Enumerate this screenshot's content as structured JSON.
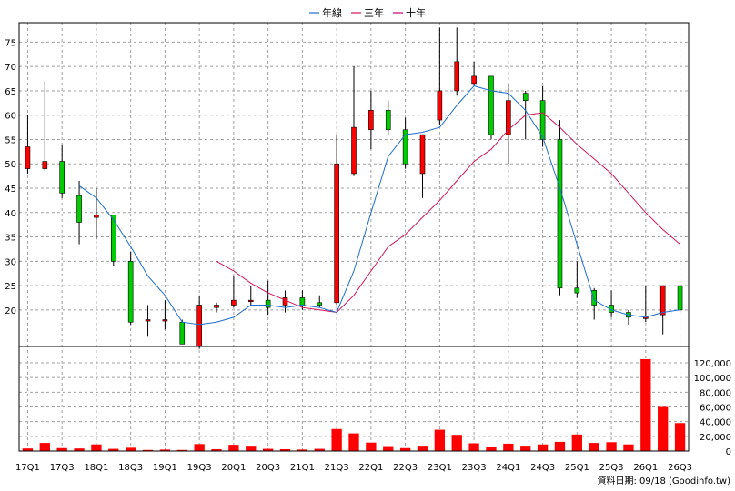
{
  "chart_data": {
    "type": "candlestick",
    "legend": [
      {
        "label": "年線",
        "color": "#1e6fd0"
      },
      {
        "label": "三年",
        "color": "#d4145a"
      },
      {
        "label": "十年",
        "color": "#c8007a"
      }
    ],
    "colors": {
      "up": "#ff0000",
      "down": "#00cc00",
      "volume": "#ff0000",
      "ma1": "#1e6fd0",
      "ma3": "#d4145a"
    },
    "x_labels": [
      "17Q1",
      "17Q3",
      "18Q1",
      "18Q3",
      "19Q1",
      "19Q3",
      "20Q1",
      "20Q3",
      "21Q1",
      "21Q3",
      "22Q1",
      "22Q3",
      "23Q1",
      "23Q3",
      "24Q1",
      "24Q3",
      "25Q1",
      "25Q3",
      "26Q1",
      "26Q3"
    ],
    "price_axis": {
      "ticks": [
        20,
        25,
        30,
        35,
        40,
        45,
        50,
        55,
        60,
        65,
        70,
        75
      ],
      "ylim": [
        12.5,
        79
      ]
    },
    "volume_axis": {
      "tick_labels": [
        "0",
        "20,000",
        "40,000",
        "60,000",
        "80,000",
        "100,000",
        "120,000"
      ],
      "ylim": [
        0,
        120000
      ]
    },
    "candles": [
      {
        "q": "17Q1",
        "o": 49,
        "h": 60,
        "l": 48,
        "c": 53.5
      },
      {
        "q": "17Q2",
        "o": 49,
        "h": 67,
        "l": 48.5,
        "c": 50.5
      },
      {
        "q": "17Q3",
        "o": 50.5,
        "h": 54,
        "l": 43,
        "c": 44
      },
      {
        "q": "17Q4",
        "o": 43.5,
        "h": 46.5,
        "l": 33.5,
        "c": 38
      },
      {
        "q": "18Q1",
        "o": 39,
        "h": 45,
        "l": 34.5,
        "c": 39.5
      },
      {
        "q": "18Q2",
        "o": 39.5,
        "h": 39.5,
        "l": 29,
        "c": 30
      },
      {
        "q": "18Q3",
        "o": 30,
        "h": 32,
        "l": 17,
        "c": 17.5
      },
      {
        "q": "18Q4",
        "o": 18,
        "h": 21,
        "l": 14.5,
        "c": 18
      },
      {
        "q": "19Q1",
        "o": 18,
        "h": 22,
        "l": 16,
        "c": 18
      },
      {
        "q": "19Q2",
        "o": 17.5,
        "h": 18,
        "l": 13,
        "c": 13
      },
      {
        "q": "19Q3",
        "o": 12.5,
        "h": 23,
        "l": 12,
        "c": 21
      },
      {
        "q": "19Q4",
        "o": 20.5,
        "h": 21.5,
        "l": 19.5,
        "c": 21
      },
      {
        "q": "20Q1",
        "o": 21,
        "h": 27,
        "l": 20.5,
        "c": 22
      },
      {
        "q": "20Q2",
        "o": 22,
        "h": 25,
        "l": 21,
        "c": 22
      },
      {
        "q": "20Q3",
        "o": 22,
        "h": 26,
        "l": 19,
        "c": 20.5
      },
      {
        "q": "20Q4",
        "o": 21,
        "h": 24,
        "l": 19.5,
        "c": 22.5
      },
      {
        "q": "21Q1",
        "o": 22.5,
        "h": 24,
        "l": 20,
        "c": 21
      },
      {
        "q": "21Q2",
        "o": 21.5,
        "h": 23,
        "l": 20.5,
        "c": 21
      },
      {
        "q": "21Q3",
        "o": 21.5,
        "h": 56,
        "l": 21,
        "c": 50
      },
      {
        "q": "21Q4",
        "o": 48,
        "h": 70,
        "l": 47.5,
        "c": 57.5
      },
      {
        "q": "22Q1",
        "o": 57,
        "h": 65,
        "l": 53,
        "c": 61
      },
      {
        "q": "22Q2",
        "o": 61,
        "h": 63,
        "l": 56,
        "c": 57
      },
      {
        "q": "22Q3",
        "o": 57,
        "h": 59.5,
        "l": 49,
        "c": 50
      },
      {
        "q": "22Q4",
        "o": 48,
        "h": 56,
        "l": 43,
        "c": 56
      },
      {
        "q": "23Q1",
        "o": 59,
        "h": 78,
        "l": 58,
        "c": 65
      },
      {
        "q": "23Q2",
        "o": 65,
        "h": 78,
        "l": 64,
        "c": 71
      },
      {
        "q": "23Q3",
        "o": 66.5,
        "h": 71,
        "l": 66,
        "c": 68
      },
      {
        "q": "23Q4",
        "o": 68,
        "h": 68,
        "l": 55,
        "c": 56
      },
      {
        "q": "24Q1",
        "o": 56,
        "h": 66.5,
        "l": 50,
        "c": 63
      },
      {
        "q": "24Q2",
        "o": 64.5,
        "h": 65,
        "l": 55,
        "c": 63
      },
      {
        "q": "24Q3",
        "o": 63,
        "h": 66,
        "l": 53.5,
        "c": 55
      },
      {
        "q": "24Q4",
        "o": 55,
        "h": 59,
        "l": 23,
        "c": 24.5
      },
      {
        "q": "25Q1",
        "o": 24.5,
        "h": 30,
        "l": 22.5,
        "c": 23.5
      },
      {
        "q": "25Q2",
        "o": 24,
        "h": 24.5,
        "l": 18,
        "c": 21
      },
      {
        "q": "25Q3",
        "o": 21,
        "h": 24,
        "l": 18.5,
        "c": 19.5
      },
      {
        "q": "25Q4",
        "o": 19.5,
        "h": 20,
        "l": 17,
        "c": 18.5
      },
      {
        "q": "26Q1",
        "o": 18.5,
        "h": 25,
        "l": 17.5,
        "c": 18.5
      },
      {
        "q": "26Q2",
        "o": 19,
        "h": 25,
        "l": 15,
        "c": 25
      },
      {
        "q": "26Q3",
        "o": 25,
        "h": 25,
        "l": 19.5,
        "c": 20
      }
    ],
    "ma_year": [
      null,
      null,
      null,
      45.5,
      43,
      38.5,
      33,
      27,
      23,
      17.5,
      17,
      17.5,
      18.5,
      21,
      21,
      20.5,
      21,
      20.5,
      19.5,
      28,
      40,
      51.5,
      56,
      56.5,
      57.5,
      62,
      66,
      65,
      64.5,
      61,
      55.5,
      45,
      33.5,
      22,
      20,
      19,
      18.5,
      19.5,
      20
    ],
    "ma_3year": [
      null,
      null,
      null,
      null,
      null,
      null,
      null,
      null,
      null,
      null,
      null,
      30,
      28,
      25.5,
      23.5,
      22,
      20.5,
      20,
      19.5,
      23,
      28,
      33,
      35.5,
      39,
      42.5,
      46.5,
      50.5,
      53,
      57,
      60,
      60.5,
      57.5,
      54,
      51,
      48,
      44,
      40,
      36.5,
      33.5
    ],
    "volumes": [
      3500,
      11000,
      4000,
      3500,
      9000,
      3000,
      4500,
      1500,
      2000,
      1500,
      9500,
      2500,
      8500,
      6000,
      3000,
      2500,
      2000,
      3000,
      30000,
      24000,
      11500,
      5500,
      4000,
      6000,
      29000,
      22000,
      10500,
      5000,
      10000,
      6000,
      9000,
      12500,
      22500,
      11000,
      12000,
      9000,
      125000,
      60000,
      38000
    ],
    "source_text": "資料日期: 09/18 (Goodinfo.tw)"
  }
}
